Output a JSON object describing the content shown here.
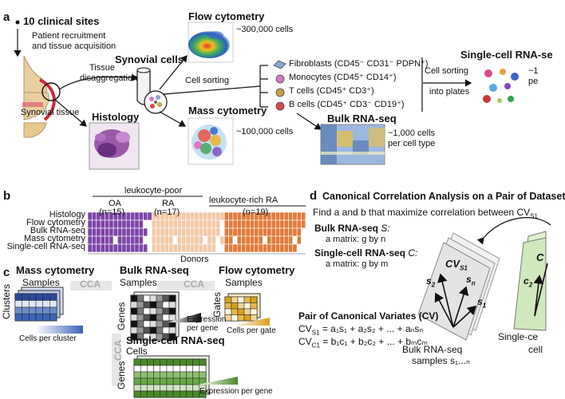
{
  "panel_letters": {
    "a": "a",
    "b": "b",
    "c": "c",
    "d": "d"
  },
  "panel_a": {
    "clinical_sites": "10 clinical sites",
    "recruitment": [
      "Patient recruitment",
      "and tissue acquisition"
    ],
    "synovial_tissue": "Synovial tissue",
    "histology": "Histology",
    "tissue_disaggregation": [
      "Tissue",
      "disaggregation"
    ],
    "synovial_cells": "Synovial cells",
    "flow_cytometry": "Flow cytometry",
    "flow_count": "~300,000 cells",
    "mass_cytometry": "Mass cytometry",
    "mass_count": "~100,000 cells",
    "cell_sorting": "Cell sorting",
    "cell_types": [
      {
        "name": "Fibroblasts",
        "markers": "(CD45⁻ CD31⁻ PDPN⁺)",
        "color": "#8aa6cc"
      },
      {
        "name": "Monocytes",
        "markers": "(CD45⁺ CD14⁺)",
        "color": "#d678c4"
      },
      {
        "name": "T cells",
        "markers": "(CD45⁺ CD3⁺)",
        "color": "#c8a040"
      },
      {
        "name": "B cells",
        "markers": "(CD45⁺ CD3⁻ CD19⁺)",
        "color": "#d84a4a"
      }
    ],
    "bulk_rnaseq": "Bulk RNA-seq",
    "bulk_count": [
      "~1,000 cells",
      "per cell type"
    ],
    "cell_sorting_plates": [
      "Cell sorting",
      "into plates"
    ],
    "single_cell_rnaseq": "Single-cell RNA-se",
    "sc_count_partial": [
      "~1",
      "pe"
    ]
  },
  "panel_b": {
    "leukocyte_poor": "leukocyte-poor",
    "leukocyte_rich": "leukocyte-rich RA",
    "groups": [
      {
        "name": "OA",
        "n": "(n=15)",
        "color": "#7d45a8",
        "count": 15
      },
      {
        "name": "RA",
        "n": "(n=17)",
        "color": "#f2c9a6",
        "count": 17
      },
      {
        "name": "",
        "n": "(n=19)",
        "color": "#e27a3a",
        "count": 19
      }
    ],
    "rows": [
      "Histology",
      "Flow cytometry",
      "Bulk RNA-seq",
      "Mass cytometry",
      "Single-cell RNA-seq"
    ],
    "donors": "Donors"
  },
  "panel_c": {
    "mass_cytometry": "Mass cytometry",
    "samples": "Samples",
    "cca": "CCA",
    "clusters": "Clusters",
    "cells_per_cluster": "Cells per cluster",
    "bulk_rnaseq": "Bulk RNA-seq",
    "genes": "Genes",
    "expression_per_gene": [
      "Expression",
      "per gene"
    ],
    "flow_cytometry": "Flow cytometry",
    "gates": "Gates",
    "cells_per_gate": "Cells per gate",
    "single_cell_rnaseq": "Single-cell RNA-seq",
    "cells": "Cells",
    "sc_expression": "Expression per gene"
  },
  "panel_d": {
    "title": "Canonical Correlation Analysis on a Pair of Dataset",
    "find_prefix": "Find a and b that maximize correlation between CV",
    "find_sub": "S1",
    "bulk_label": "Bulk RNA-seq ",
    "bulk_var": "S:",
    "bulk_matrix": "a matrix: g by n",
    "sc_label": "Single-cell RNA-seq ",
    "sc_var": "C:",
    "sc_matrix": "a matrix: g by m",
    "cv_title": "Pair of Canonical Variates (CV)",
    "cv_s1": "CV",
    "cv_s1_eq": "= a₁s₁ + a₂s₂ + ... + aₙsₙ",
    "cv_c1_eq": "= b₁c₁ + b₂c₂ + ... + bₘcₘ",
    "bulk_samples": [
      "Bulk RNA-seq",
      "samples s₁...ₙ"
    ],
    "sc_cells_partial": [
      "Single-ce",
      "cell"
    ],
    "vec_cv": "CV",
    "vec_s2": "s",
    "vec_sn": "s",
    "vec_s1": "s",
    "vec_c2": "c",
    "vec_c_partial": "C"
  }
}
